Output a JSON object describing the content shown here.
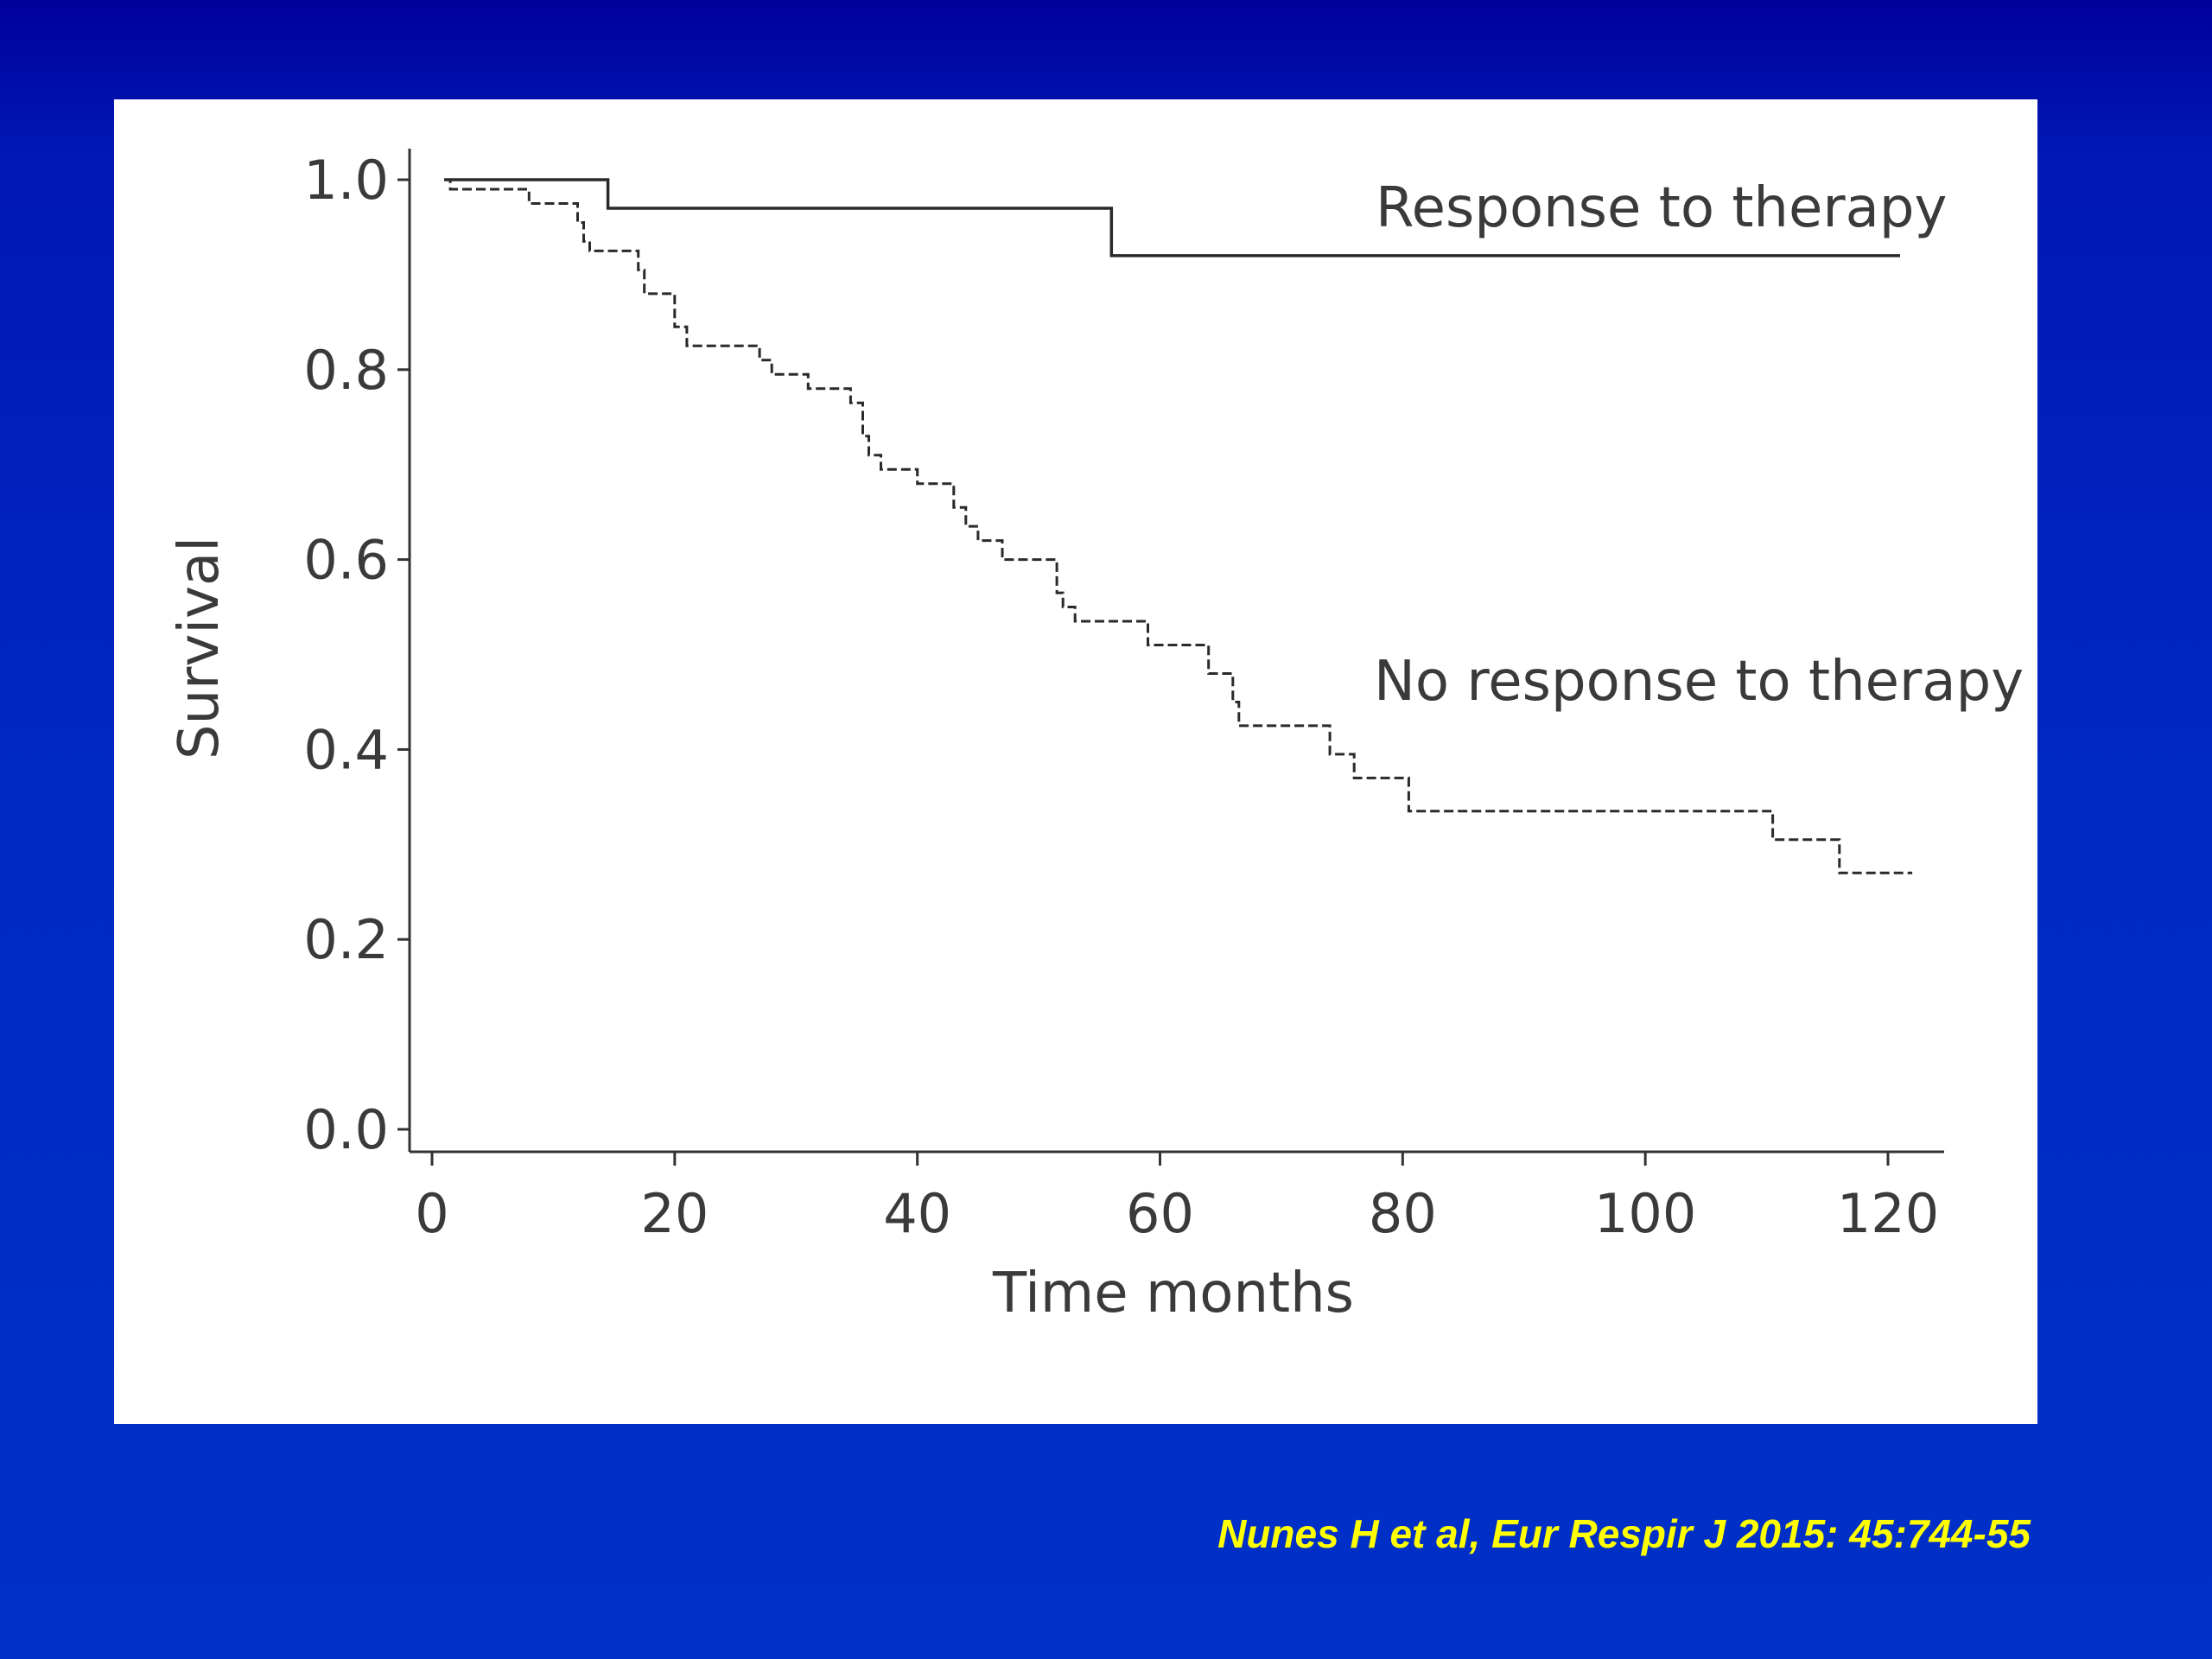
{
  "chart_data": {
    "type": "line",
    "step": true,
    "xlabel": "Time months",
    "ylabel": "Survival",
    "xlim": [
      0,
      125
    ],
    "ylim": [
      0,
      1.0
    ],
    "xticks": [
      0,
      20,
      40,
      60,
      80,
      100,
      120
    ],
    "yticks": [
      "0.0",
      "0.2",
      "0.4",
      "0.6",
      "0.8",
      "1.0"
    ],
    "series": [
      {
        "name": "Response to therapy",
        "style": "solid",
        "points": [
          [
            1,
            1.0
          ],
          [
            14.5,
            1.0
          ],
          [
            14.5,
            0.97
          ],
          [
            56,
            0.97
          ],
          [
            56,
            0.92
          ],
          [
            121,
            0.92
          ]
        ]
      },
      {
        "name": "No response to therapy",
        "style": "dashed",
        "points": [
          [
            1,
            1.0
          ],
          [
            1.5,
            1.0
          ],
          [
            1.5,
            0.99
          ],
          [
            8,
            0.99
          ],
          [
            8,
            0.975
          ],
          [
            12,
            0.975
          ],
          [
            12,
            0.955
          ],
          [
            12.5,
            0.955
          ],
          [
            12.5,
            0.935
          ],
          [
            13,
            0.935
          ],
          [
            13,
            0.925
          ],
          [
            17,
            0.925
          ],
          [
            17,
            0.905
          ],
          [
            17.5,
            0.905
          ],
          [
            17.5,
            0.88
          ],
          [
            20,
            0.88
          ],
          [
            20,
            0.845
          ],
          [
            21,
            0.845
          ],
          [
            21,
            0.825
          ],
          [
            27,
            0.825
          ],
          [
            27,
            0.81
          ],
          [
            28,
            0.81
          ],
          [
            28,
            0.795
          ],
          [
            31,
            0.795
          ],
          [
            31,
            0.78
          ],
          [
            34.5,
            0.78
          ],
          [
            34.5,
            0.765
          ],
          [
            35.5,
            0.765
          ],
          [
            35.5,
            0.73
          ],
          [
            36,
            0.73
          ],
          [
            36,
            0.71
          ],
          [
            37,
            0.71
          ],
          [
            37,
            0.695
          ],
          [
            40,
            0.695
          ],
          [
            40,
            0.68
          ],
          [
            43,
            0.68
          ],
          [
            43,
            0.655
          ],
          [
            44,
            0.655
          ],
          [
            44,
            0.635
          ],
          [
            45,
            0.635
          ],
          [
            45,
            0.62
          ],
          [
            47,
            0.62
          ],
          [
            47,
            0.6
          ],
          [
            51.5,
            0.6
          ],
          [
            51.5,
            0.565
          ],
          [
            52,
            0.565
          ],
          [
            52,
            0.55
          ],
          [
            53,
            0.55
          ],
          [
            53,
            0.535
          ],
          [
            59,
            0.535
          ],
          [
            59,
            0.51
          ],
          [
            64,
            0.51
          ],
          [
            64,
            0.48
          ],
          [
            66,
            0.48
          ],
          [
            66,
            0.45
          ],
          [
            66.5,
            0.45
          ],
          [
            66.5,
            0.425
          ],
          [
            74,
            0.425
          ],
          [
            74,
            0.395
          ],
          [
            76,
            0.395
          ],
          [
            76,
            0.37
          ],
          [
            80.5,
            0.37
          ],
          [
            80.5,
            0.335
          ],
          [
            110.5,
            0.335
          ],
          [
            110.5,
            0.305
          ],
          [
            116,
            0.305
          ],
          [
            116,
            0.27
          ],
          [
            122,
            0.27
          ]
        ]
      }
    ],
    "annotations": [
      {
        "text": "Response to therapy",
        "x": 98,
        "y": 0.97
      },
      {
        "text": "No response to therapy",
        "x": 98,
        "y": 0.47
      }
    ],
    "grid": false,
    "legend": "none"
  },
  "citation": "Nunes H et al, Eur Respir J 2015: 45:744-55"
}
